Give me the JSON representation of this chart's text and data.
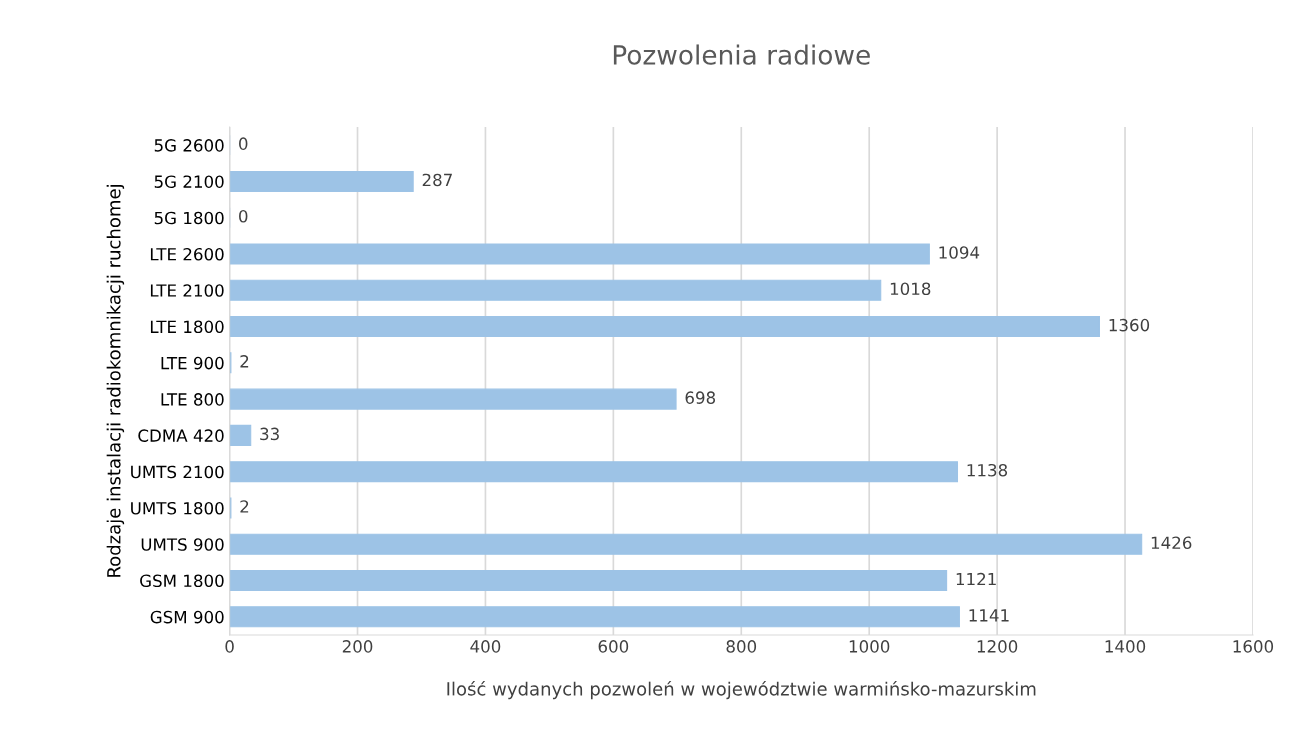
{
  "chart_data": {
    "type": "bar",
    "orientation": "horizontal",
    "title": "Pozwolenia radiowe",
    "xlabel": "Ilość wydanych pozwoleń w województwie warmińsko-mazurskim",
    "ylabel": "Rodzaje instalacji radiokomnikacji ruchomej",
    "categories": [
      "5G 2600",
      "5G 2100",
      "5G 1800",
      "LTE 2600",
      "LTE 2100",
      "LTE 1800",
      "LTE 900",
      "LTE 800",
      "CDMA 420",
      "UMTS 2100",
      "UMTS 1800",
      "UMTS 900",
      "GSM 1800",
      "GSM 900"
    ],
    "values": [
      0,
      287,
      0,
      1094,
      1018,
      1360,
      2,
      698,
      33,
      1138,
      2,
      1426,
      1121,
      1141
    ],
    "color": "#9dc3e6",
    "xlim": [
      0,
      1600
    ],
    "xticks": [
      0,
      200,
      400,
      600,
      800,
      1000,
      1200,
      1400,
      1600
    ],
    "grid": "x",
    "data_labels": true,
    "legend": false
  }
}
